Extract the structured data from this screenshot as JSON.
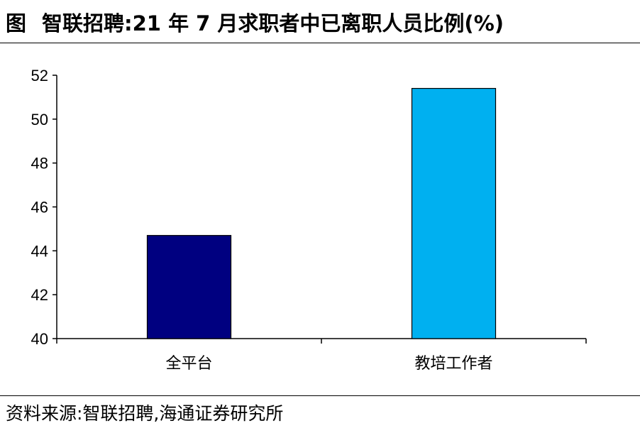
{
  "header": {
    "prefix": "图",
    "title": "智联招聘:21 年 7 月求职者中已离职人员比例(%)"
  },
  "chart_data": {
    "type": "bar",
    "categories": [
      "全平台",
      "教培工作者"
    ],
    "values": [
      44.7,
      51.4
    ],
    "ylim": [
      40,
      52
    ],
    "yticks": [
      "40",
      "42",
      "44",
      "46",
      "48",
      "50",
      "52"
    ],
    "bar_colors": [
      "#000080",
      "#00B0F0"
    ],
    "grid": false,
    "legend": "none",
    "xlabel": "",
    "ylabel": ""
  },
  "footer": {
    "source": "资料来源:智联招聘,海通证券研究所"
  }
}
